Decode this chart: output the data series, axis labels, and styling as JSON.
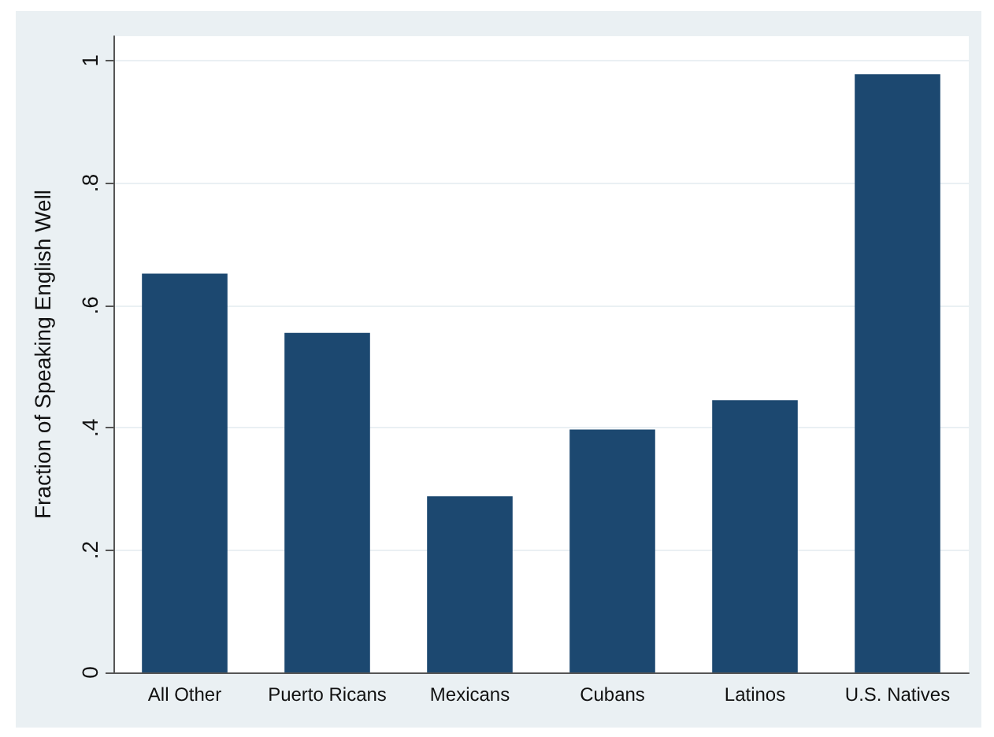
{
  "chart_data": {
    "type": "bar",
    "ylabel": "Fraction of Speaking English Well",
    "categories": [
      "All Other",
      "Puerto Ricans",
      "Mexicans",
      "Cubans",
      "Latinos",
      "U.S. Natives"
    ],
    "values": [
      0.652,
      0.555,
      0.288,
      0.397,
      0.445,
      0.978
    ],
    "color": "#1c4870",
    "ylim": [
      0,
      1.04
    ],
    "yticks": [
      {
        "value": 0,
        "label": "0"
      },
      {
        "value": 0.2,
        "label": ".2"
      },
      {
        "value": 0.4,
        "label": ".4"
      },
      {
        "value": 0.6,
        "label": ".6"
      },
      {
        "value": 0.8,
        "label": ".8"
      },
      {
        "value": 1,
        "label": "1"
      }
    ],
    "grid": "y"
  }
}
